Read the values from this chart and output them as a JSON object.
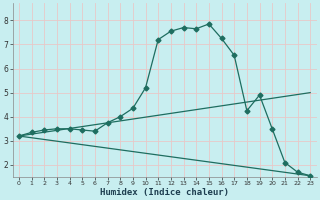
{
  "xlabel": "Humidex (Indice chaleur)",
  "bg_color": "#c8eef0",
  "grid_color": "#e8c8c8",
  "line_color": "#1e6e60",
  "xlim": [
    -0.5,
    23.5
  ],
  "ylim": [
    1.5,
    8.7
  ],
  "xticks": [
    0,
    1,
    2,
    3,
    4,
    5,
    6,
    7,
    8,
    9,
    10,
    11,
    12,
    13,
    14,
    15,
    16,
    17,
    18,
    19,
    20,
    21,
    22,
    23
  ],
  "yticks": [
    2,
    3,
    4,
    5,
    6,
    7,
    8
  ],
  "line1_x": [
    0,
    1,
    2,
    3,
    4,
    5,
    6,
    7,
    8,
    9,
    10,
    11,
    12,
    13,
    14,
    15,
    16,
    17,
    18,
    19,
    20,
    21,
    22,
    23
  ],
  "line1_y": [
    3.2,
    3.35,
    3.45,
    3.5,
    3.5,
    3.45,
    3.4,
    3.75,
    4.0,
    4.35,
    5.2,
    7.2,
    7.55,
    7.7,
    7.65,
    7.85,
    7.25,
    6.55,
    4.25,
    4.9,
    3.5,
    2.1,
    1.7,
    1.55
  ],
  "line2_x": [
    0,
    23
  ],
  "line2_y": [
    3.2,
    5.0
  ],
  "line3_x": [
    0,
    23
  ],
  "line3_y": [
    3.2,
    1.55
  ],
  "markersize": 2.5,
  "linewidth": 0.9
}
